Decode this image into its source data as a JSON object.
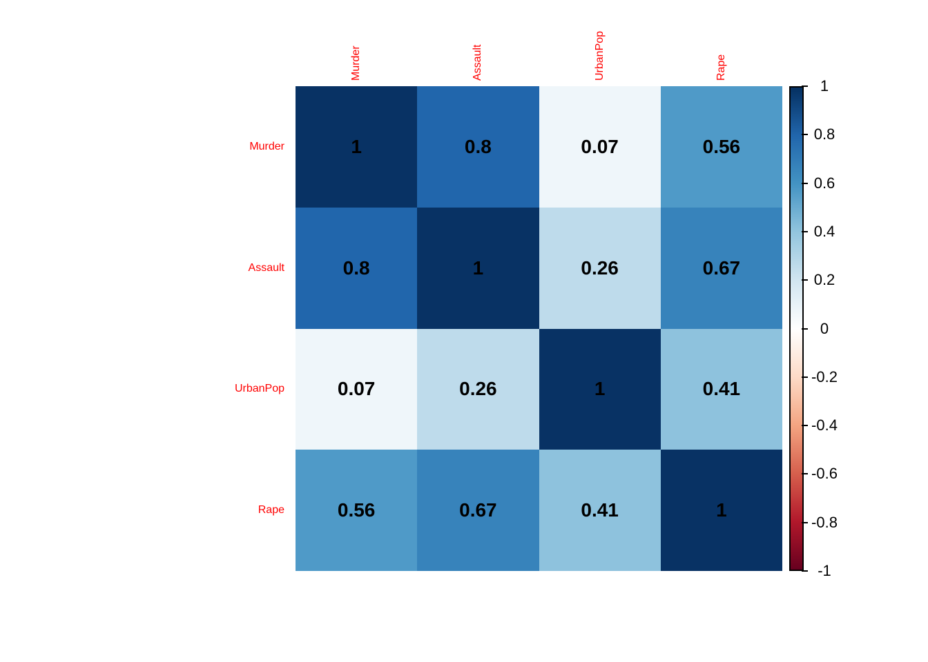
{
  "chart_data": {
    "type": "heatmap",
    "title": "",
    "description": "Correlation matrix heatmap (corrplot style) of Murder, Assault, UrbanPop, Rape",
    "variables": [
      "Murder",
      "Assault",
      "UrbanPop",
      "Rape"
    ],
    "matrix": [
      [
        1,
        0.8,
        0.07,
        0.56
      ],
      [
        0.8,
        1,
        0.26,
        0.67
      ],
      [
        0.07,
        0.26,
        1,
        0.41
      ],
      [
        0.56,
        0.67,
        0.41,
        1
      ]
    ],
    "cell_labels": [
      [
        "1",
        "0.8",
        "0.07",
        "0.56"
      ],
      [
        "0.8",
        "1",
        "0.26",
        "0.67"
      ],
      [
        "0.07",
        "0.26",
        "1",
        "0.41"
      ],
      [
        "0.56",
        "0.67",
        "0.41",
        "1"
      ]
    ],
    "cell_colors": [
      [
        "#083264",
        "#2166ac",
        "#eff6fa",
        "#4f9ac8"
      ],
      [
        "#2166ac",
        "#083264",
        "#bedbeb",
        "#3783bb"
      ],
      [
        "#eff6fa",
        "#bedbeb",
        "#083264",
        "#8ec2dd"
      ],
      [
        "#4f9ac8",
        "#3783bb",
        "#8ec2dd",
        "#083264"
      ]
    ],
    "label_color": "#ff0000",
    "value_text_color": "#000000",
    "background_color": "#ffffff",
    "legend_position": "right",
    "colorbar": {
      "range": [
        -1,
        1
      ],
      "ticks": [
        "1",
        "0.8",
        "0.6",
        "0.4",
        "0.2",
        "0",
        "-0.2",
        "-0.4",
        "-0.6",
        "-0.8",
        "-1"
      ],
      "gradient_top_to_bottom": [
        "#053061",
        "#2166ac",
        "#4393c3",
        "#92c5de",
        "#d1e5f0",
        "#ffffff",
        "#fddbc7",
        "#f4a582",
        "#d6604d",
        "#b2182b",
        "#67001f"
      ],
      "border_color": "#000000"
    }
  }
}
